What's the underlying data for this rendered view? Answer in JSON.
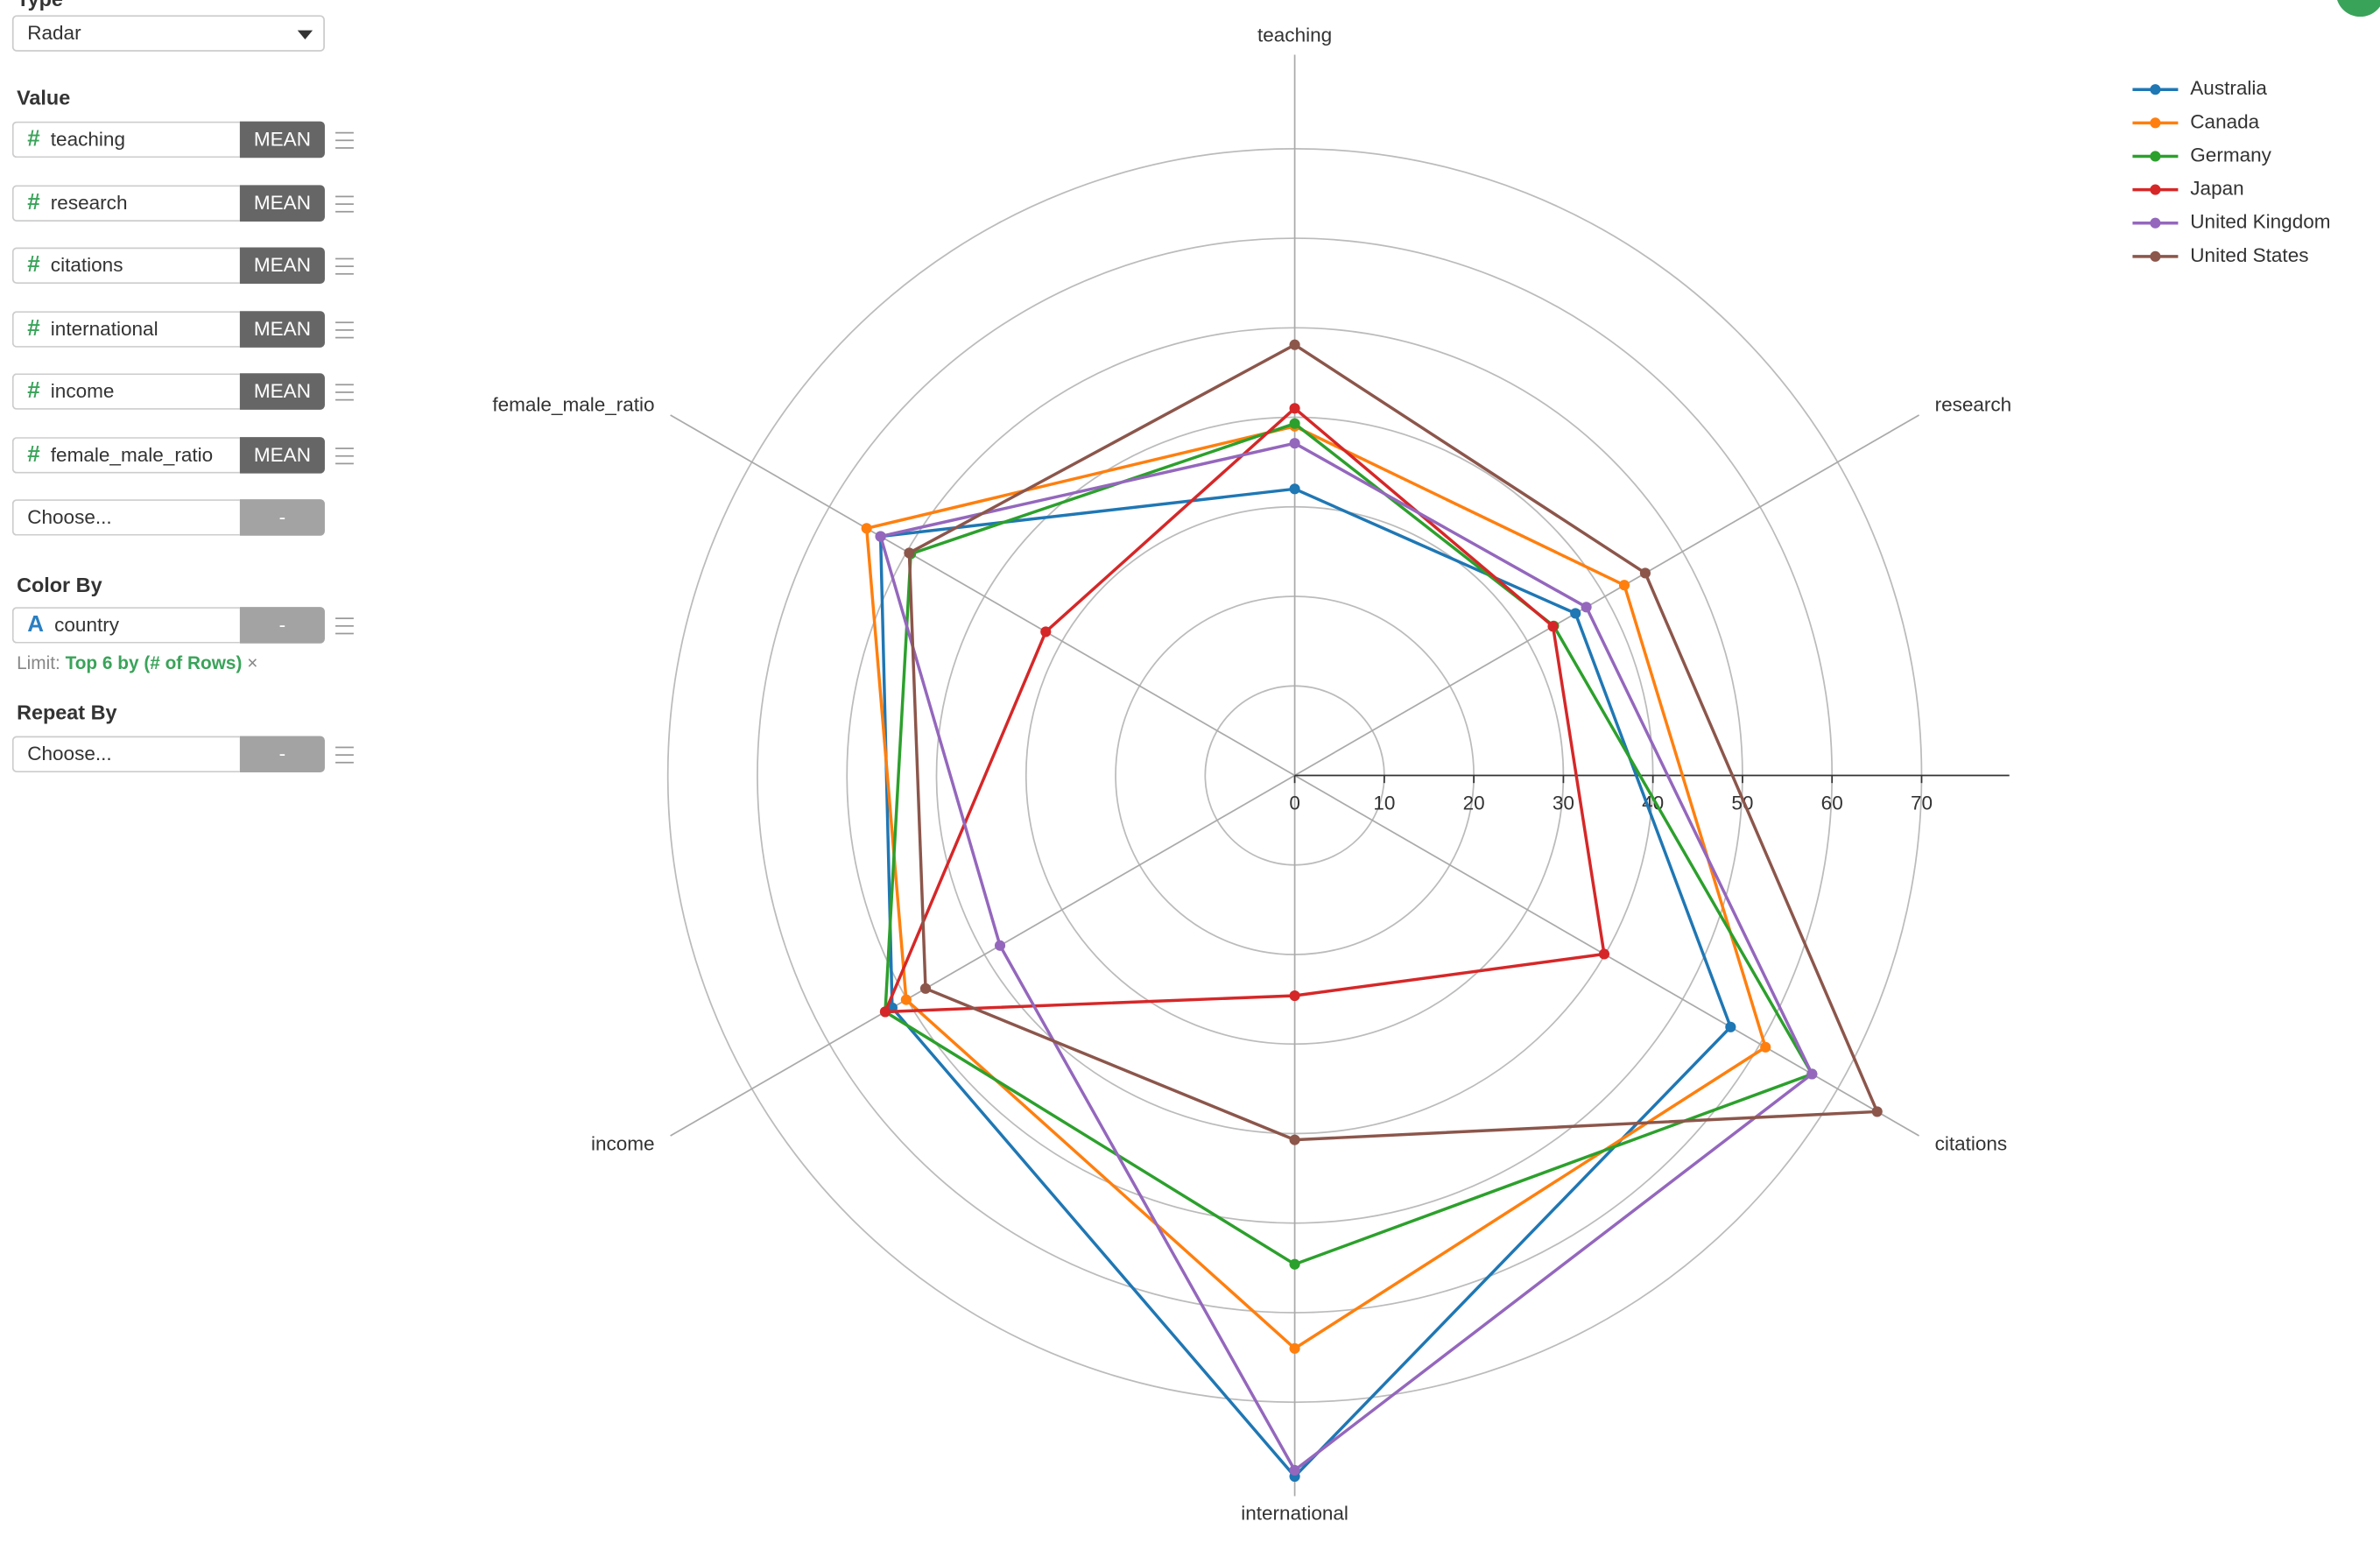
{
  "sidebar": {
    "type_label": "Type",
    "chart_type": "Radar",
    "value_label": "Value",
    "values": [
      {
        "icon": "#",
        "field": "teaching",
        "agg": "MEAN"
      },
      {
        "icon": "#",
        "field": "research",
        "agg": "MEAN"
      },
      {
        "icon": "#",
        "field": "citations",
        "agg": "MEAN"
      },
      {
        "icon": "#",
        "field": "international",
        "agg": "MEAN"
      },
      {
        "icon": "#",
        "field": "income",
        "agg": "MEAN"
      },
      {
        "icon": "#",
        "field": "female_male_ratio",
        "agg": "MEAN"
      }
    ],
    "choose": "Choose...",
    "choose_button": "-",
    "color_by_label": "Color By",
    "color_by": {
      "icon": "A",
      "field": "country",
      "button": "-"
    },
    "limit_label": "Limit:",
    "limit": "Top 6 by (# of Rows)",
    "limit_clear": "×",
    "repeat_by_label": "Repeat By",
    "repeat_by": {
      "field": "Choose...",
      "button": "-"
    }
  },
  "chart_data": {
    "type": "radar",
    "categories": [
      "teaching",
      "research",
      "citations",
      "international",
      "income",
      "female_male_ratio"
    ],
    "series": [
      {
        "name": "Australia",
        "color": "#1f77b4",
        "values": [
          32,
          36.2,
          56.2,
          78.3,
          51.9,
          53.4
        ]
      },
      {
        "name": "Canada",
        "color": "#ff7f0e",
        "values": [
          39,
          42.5,
          60.7,
          64,
          50.1,
          55.2
        ]
      },
      {
        "name": "Germany",
        "color": "#2ca02c",
        "values": [
          39.3,
          33.4,
          66.7,
          54.6,
          52.8,
          49.5
        ]
      },
      {
        "name": "Japan",
        "color": "#d62728",
        "values": [
          41,
          33.3,
          39.9,
          24.6,
          52.8,
          32.1
        ]
      },
      {
        "name": "United Kingdom",
        "color": "#9467bd",
        "values": [
          37.1,
          37.6,
          66.7,
          77.6,
          38,
          53.4
        ]
      },
      {
        "name": "United States",
        "color": "#8c564b",
        "values": [
          48.1,
          45.2,
          75.1,
          40.7,
          47.6,
          49.7
        ]
      }
    ],
    "rlim": [
      0,
      70
    ],
    "rticks": [
      0,
      10,
      20,
      30,
      40,
      50,
      60,
      70
    ],
    "grid": true,
    "legend": "top-right"
  }
}
